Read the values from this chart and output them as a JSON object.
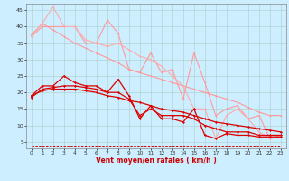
{
  "background_color": "#cceeff",
  "grid_color": "#aacccc",
  "xlabel": "Vent moyen/en rafales ( km/h )",
  "x_ticks": [
    0,
    1,
    2,
    3,
    4,
    5,
    6,
    7,
    8,
    9,
    10,
    11,
    12,
    13,
    14,
    15,
    16,
    17,
    18,
    19,
    20,
    21,
    22,
    23
  ],
  "y_ticks": [
    5,
    10,
    15,
    20,
    25,
    30,
    35,
    40,
    45
  ],
  "xlim": [
    -0.5,
    23.5
  ],
  "ylim": [
    3,
    47
  ],
  "line_light1": {
    "x": [
      0,
      1,
      2,
      3,
      4,
      5,
      6,
      7,
      8,
      9,
      10,
      11,
      12,
      13,
      14,
      15,
      16,
      17,
      18,
      19,
      20,
      21,
      22,
      23
    ],
    "y": [
      37,
      40,
      40,
      40,
      40,
      35,
      35,
      42,
      38,
      27,
      26,
      32,
      26,
      27,
      18,
      32,
      23,
      13,
      15,
      16,
      12,
      13,
      6,
      7
    ],
    "color": "#ff9999",
    "lw": 0.8
  },
  "line_light2": {
    "x": [
      0,
      1,
      2,
      3,
      4,
      5,
      6,
      7,
      8,
      9,
      10,
      11,
      12,
      13,
      14,
      15,
      16,
      17,
      18,
      19,
      20,
      21,
      22,
      23
    ],
    "y": [
      37.5,
      41,
      39,
      37,
      35,
      33.5,
      32,
      30.5,
      29,
      27,
      26,
      25,
      24,
      23,
      22,
      21,
      20,
      19,
      18,
      17,
      15.5,
      14,
      13,
      13
    ],
    "color": "#ff9999",
    "lw": 0.8
  },
  "line_light3": {
    "x": [
      0,
      1,
      2,
      3,
      4,
      5,
      6,
      7,
      8,
      9,
      10,
      11,
      12,
      13,
      14,
      15,
      16,
      17,
      18,
      19,
      20,
      21,
      22,
      23
    ],
    "y": [
      37,
      41,
      46,
      40,
      40,
      36,
      35,
      34,
      35,
      33,
      31,
      30,
      28,
      25,
      22,
      15,
      15,
      6,
      13,
      15,
      12,
      8,
      6,
      6.5
    ],
    "color": "#ffaaaa",
    "lw": 0.8
  },
  "line_dark1": {
    "x": [
      0,
      1,
      2,
      3,
      4,
      5,
      6,
      7,
      8,
      9,
      10,
      11,
      12,
      13,
      14,
      15,
      16,
      17,
      18,
      19,
      20,
      21,
      22,
      23
    ],
    "y": [
      19,
      22,
      22,
      25,
      23,
      22,
      22,
      20,
      24,
      19,
      12,
      16,
      12,
      12,
      11,
      15,
      7,
      6,
      7.5,
      7,
      7,
      6.5,
      6.5,
      6.5
    ],
    "color": "#dd0000",
    "lw": 0.9
  },
  "line_dark2": {
    "x": [
      0,
      1,
      2,
      3,
      4,
      5,
      6,
      7,
      8,
      9,
      10,
      11,
      12,
      13,
      14,
      15,
      16,
      17,
      18,
      19,
      20,
      21,
      22,
      23
    ],
    "y": [
      18.5,
      21,
      21.5,
      22,
      22,
      21.5,
      21,
      20,
      20,
      18,
      13,
      15,
      13,
      13,
      13,
      12,
      10,
      9,
      8,
      8,
      8,
      7,
      7,
      7
    ],
    "color": "#dd0000",
    "lw": 0.9
  },
  "line_dark3": {
    "x": [
      0,
      1,
      2,
      3,
      4,
      5,
      6,
      7,
      8,
      9,
      10,
      11,
      12,
      13,
      14,
      15,
      16,
      17,
      18,
      19,
      20,
      21,
      22,
      23
    ],
    "y": [
      19,
      20.5,
      21,
      21,
      21,
      20.5,
      20,
      19,
      18.5,
      17.5,
      17,
      16,
      15,
      14.5,
      14,
      13,
      12,
      11,
      10.5,
      10,
      9.5,
      9,
      8.5,
      8
    ],
    "color": "#dd0000",
    "lw": 0.9
  },
  "dashed_line": {
    "x": [
      0,
      23
    ],
    "y": [
      3.8,
      3.8
    ],
    "color": "#dd0000",
    "lw": 0.7
  }
}
